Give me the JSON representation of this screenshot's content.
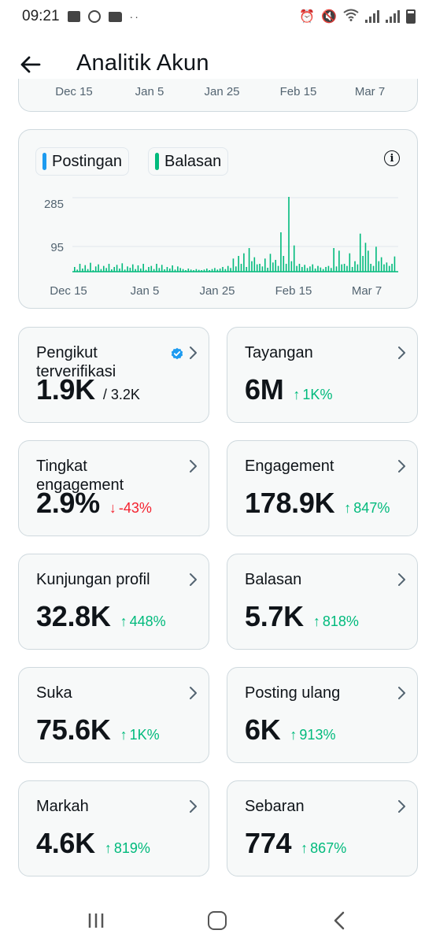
{
  "status_bar": {
    "time": "09:21",
    "dots": "··"
  },
  "header": {
    "title": "Analitik Akun"
  },
  "prev_chart": {
    "tick_labels": [
      "Dec 15",
      "Jan 5",
      "Jan 25",
      "Feb 15",
      "Mar 7"
    ]
  },
  "chart_data": {
    "type": "bar",
    "legend": [
      {
        "name": "Postingan",
        "color": "#1d9bf0"
      },
      {
        "name": "Balasan",
        "color": "#00ba7c"
      }
    ],
    "y_ticks": [
      285,
      95
    ],
    "ylim": [
      0,
      300
    ],
    "x_tick_labels": [
      "Dec 15",
      "Jan 5",
      "Jan 25",
      "Feb 15",
      "Mar 7"
    ],
    "series": [
      {
        "name": "Balasan",
        "values": [
          18,
          8,
          30,
          12,
          25,
          10,
          34,
          6,
          20,
          28,
          10,
          22,
          14,
          30,
          9,
          18,
          26,
          12,
          32,
          8,
          20,
          15,
          28,
          10,
          24,
          12,
          30,
          7,
          18,
          22,
          10,
          30,
          14,
          26,
          9,
          18,
          12,
          24,
          8,
          20,
          14,
          10,
          6,
          12,
          8,
          5,
          10,
          7,
          4,
          8,
          12,
          6,
          10,
          14,
          8,
          12,
          18,
          10,
          22,
          14,
          50,
          20,
          60,
          30,
          70,
          18,
          90,
          40,
          55,
          28,
          30,
          20,
          50,
          15,
          68,
          35,
          45,
          22,
          150,
          60,
          30,
          285,
          40,
          100,
          22,
          30,
          18,
          26,
          14,
          20,
          28,
          12,
          22,
          16,
          10,
          18,
          22,
          14,
          90,
          20,
          80,
          28,
          30,
          22,
          70,
          18,
          40,
          28,
          145,
          60,
          110,
          80,
          30,
          22,
          95,
          40,
          55,
          28,
          35,
          22,
          30,
          58
        ]
      }
    ]
  },
  "metrics": [
    {
      "label": "Pengikut terverifikasi",
      "value": "1.9K",
      "sub": "/ 3.2K",
      "change": "",
      "direction": "none",
      "verified": true
    },
    {
      "label": "Tayangan",
      "value": "6M",
      "sub": "",
      "change": "1K%",
      "direction": "up"
    },
    {
      "label": "Tingkat engagement",
      "value": "2.9%",
      "sub": "",
      "change": "-43%",
      "direction": "down"
    },
    {
      "label": "Engagement",
      "value": "178.9K",
      "sub": "",
      "change": "847%",
      "direction": "up"
    },
    {
      "label": "Kunjungan profil",
      "value": "32.8K",
      "sub": "",
      "change": "448%",
      "direction": "up"
    },
    {
      "label": "Balasan",
      "value": "5.7K",
      "sub": "",
      "change": "818%",
      "direction": "up"
    },
    {
      "label": "Suka",
      "value": "75.6K",
      "sub": "",
      "change": "1K%",
      "direction": "up"
    },
    {
      "label": "Posting ulang",
      "value": "6K",
      "sub": "",
      "change": "913%",
      "direction": "up"
    },
    {
      "label": "Markah",
      "value": "4.6K",
      "sub": "",
      "change": "819%",
      "direction": "up"
    },
    {
      "label": "Sebaran",
      "value": "774",
      "sub": "",
      "change": "867%",
      "direction": "up"
    }
  ],
  "colors": {
    "accent_up": "#00ba7c",
    "accent_down": "#f4212e",
    "verified": "#1d9bf0",
    "card_border": "#cfd9de"
  }
}
